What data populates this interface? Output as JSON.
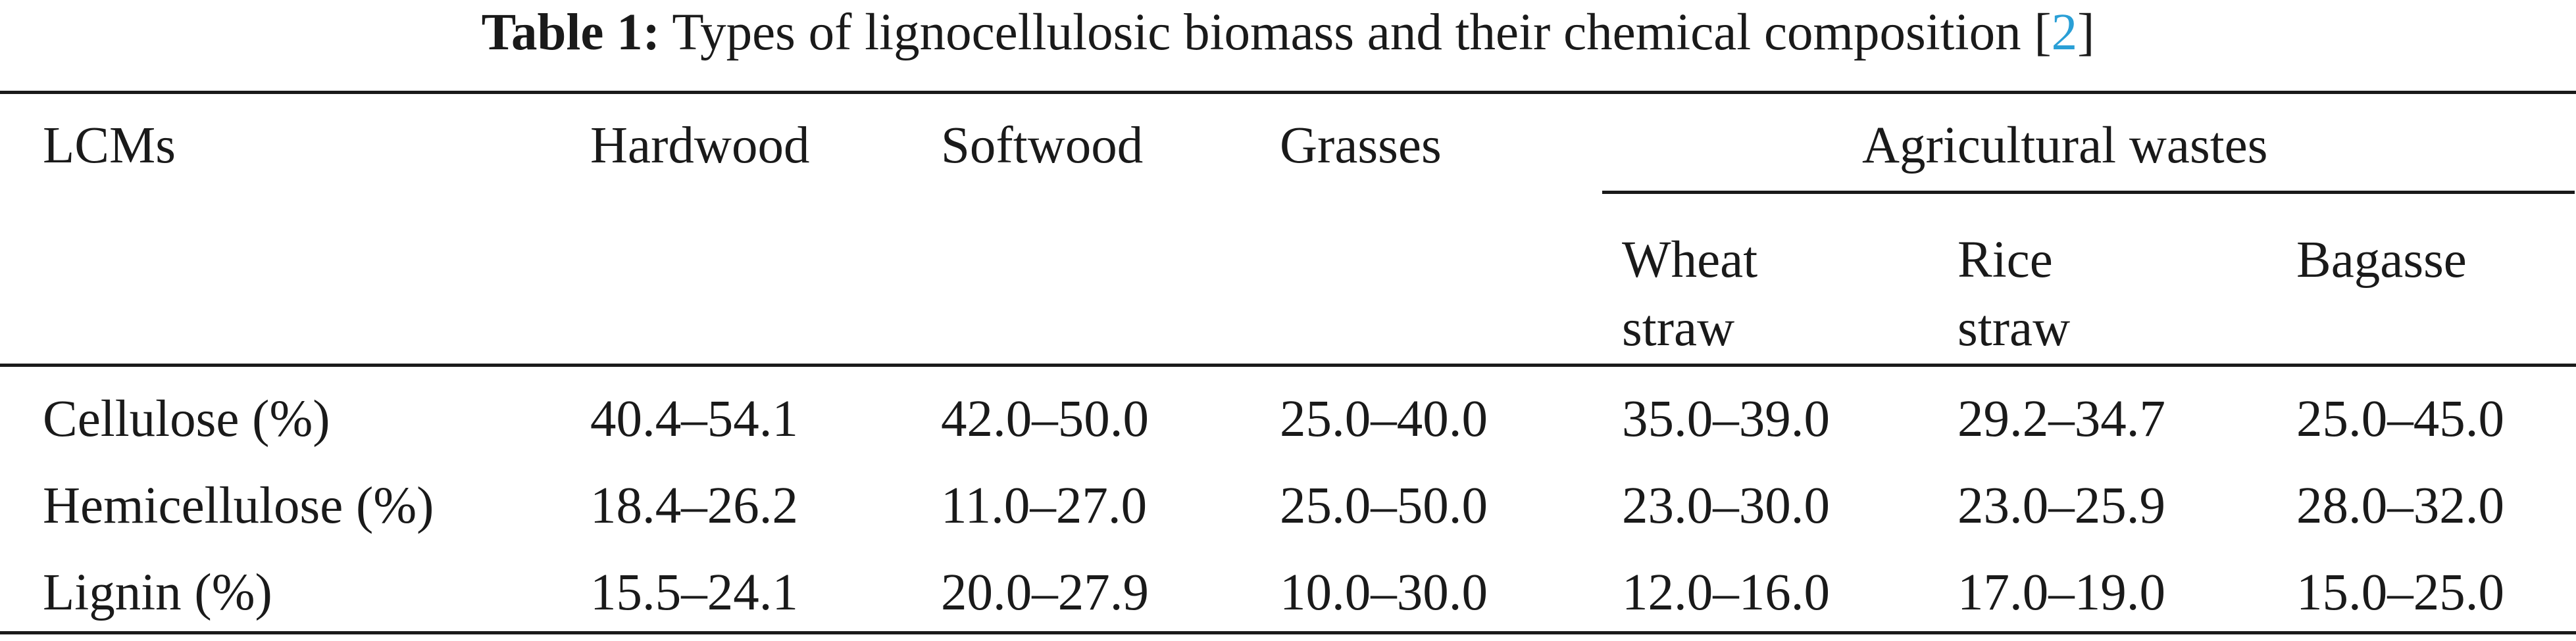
{
  "caption": {
    "label": "Table 1:",
    "text": "Types of lignocellulosic biomass and their chemical composition [",
    "ref": "2",
    "close": "]"
  },
  "table": {
    "header": {
      "row_label": "LCMs",
      "columns": [
        "Hardwood",
        "Softwood",
        "Grasses"
      ],
      "group_label": "Agricultural wastes",
      "sub_columns": [
        {
          "line1": "Wheat",
          "line2": "straw"
        },
        {
          "line1": "Rice",
          "line2": "straw"
        },
        {
          "line1": "Bagasse",
          "line2": ""
        }
      ]
    },
    "rows": [
      {
        "label": "Cellulose (%)",
        "values": [
          "40.4–54.1",
          "42.0–50.0",
          "25.0–40.0",
          "35.0–39.0",
          "29.2–34.7",
          "25.0–45.0"
        ]
      },
      {
        "label": "Hemicellulose (%)",
        "values": [
          "18.4–26.2",
          "11.0–27.0",
          "25.0–50.0",
          "23.0–30.0",
          "23.0–25.9",
          "28.0–32.0"
        ]
      },
      {
        "label": "Lignin (%)",
        "values": [
          "15.5–24.1",
          "20.0–27.9",
          "10.0–30.0",
          "12.0–16.0",
          "17.0–19.0",
          "15.0–25.0"
        ]
      }
    ]
  }
}
